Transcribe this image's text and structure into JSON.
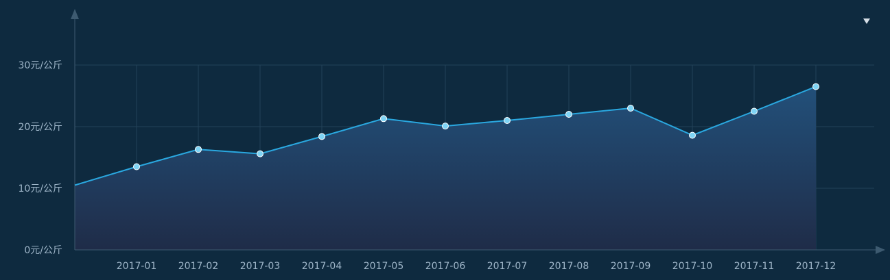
{
  "chart_data": {
    "type": "area",
    "categories": [
      "2017-01",
      "2017-02",
      "2017-03",
      "2017-04",
      "2017-05",
      "2017-06",
      "2017-07",
      "2017-08",
      "2017-09",
      "2017-10",
      "2017-11",
      "2017-12"
    ],
    "start_value": 10.5,
    "values": [
      13.5,
      16.3,
      15.6,
      18.4,
      21.3,
      20.1,
      21.0,
      22.0,
      23.0,
      18.6,
      22.5,
      26.5
    ],
    "ylim": [
      0,
      30
    ],
    "yticks": [
      0,
      10,
      20,
      30
    ],
    "ytick_unit": "元/公斤",
    "grid": true,
    "colors": {
      "background": "#0e2a3f",
      "line": "#2aa8e0",
      "marker_fill": "#7fd4f5",
      "marker_stroke": "#ffffff",
      "area_top": "#22507a",
      "area_bottom": "#1f2c48",
      "grid": "#234258",
      "axis": "#3d5a70"
    }
  },
  "controls": {
    "dropdown_icon": "caret-down-icon"
  }
}
